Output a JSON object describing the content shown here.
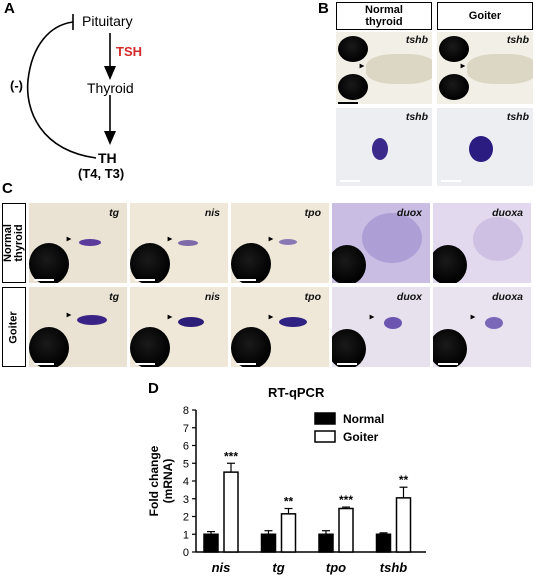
{
  "panels": {
    "a": "A",
    "b": "B",
    "c": "C",
    "d": "D"
  },
  "panel_a": {
    "pituitary": "Pituitary",
    "tsh": "TSH",
    "thyroid": "Thyroid",
    "th": "TH",
    "th_sub": "(T4, T3)",
    "feedback": "(-)",
    "tsh_color": "#d42a2a"
  },
  "panel_b": {
    "header_normal": "Normal thyroid",
    "header_goiter": "Goiter",
    "gene": "tshb"
  },
  "panel_c": {
    "row_normal": "Normal thyroid",
    "row_goiter": "Goiter",
    "genes": [
      "tg",
      "nis",
      "tpo",
      "duox",
      "duoxa"
    ]
  },
  "chart_data": {
    "type": "bar",
    "title": "RT-qPCR",
    "ylabel": "Fold change (mRNA)",
    "xlabel": "",
    "ylim": [
      0,
      8
    ],
    "yticks": [
      0,
      1,
      2,
      3,
      4,
      5,
      6,
      7,
      8
    ],
    "categories": [
      "nis",
      "tg",
      "tpo",
      "tshb"
    ],
    "series": [
      {
        "name": "Normal",
        "fill": "#000000",
        "values": [
          1.0,
          1.0,
          1.0,
          1.0
        ],
        "errors": [
          0.15,
          0.2,
          0.2,
          0.08
        ]
      },
      {
        "name": "Goiter",
        "fill": "#ffffff",
        "values": [
          4.5,
          2.15,
          2.45,
          3.05
        ],
        "errors": [
          0.5,
          0.3,
          0.08,
          0.6
        ]
      }
    ],
    "significance": [
      "***",
      "**",
      "***",
      "**"
    ],
    "legend_position": "top-right"
  }
}
